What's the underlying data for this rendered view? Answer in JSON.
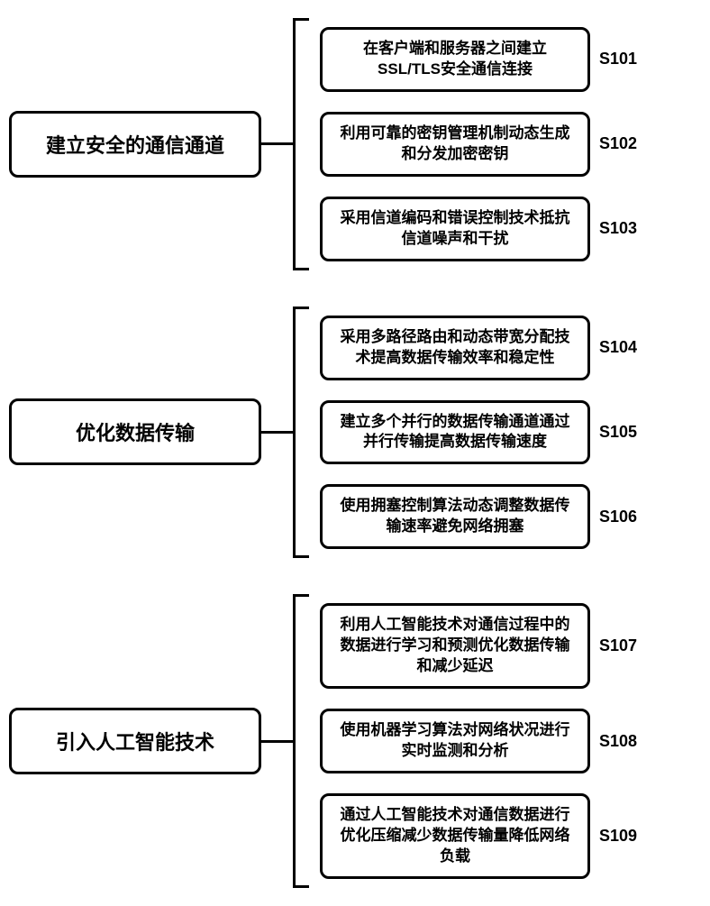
{
  "diagram": {
    "type": "flowchart",
    "background_color": "#ffffff",
    "border_color": "#000000",
    "border_width": 3,
    "border_radius": 10,
    "font_family": "Microsoft YaHei",
    "main_fontsize": 22,
    "step_fontsize": 17,
    "id_fontsize": 18,
    "font_weight": "bold",
    "text_color": "#000000",
    "sections": [
      {
        "title": "建立安全的通信通道",
        "steps": [
          {
            "id": "S101",
            "text": "在客户端和服务器之间建立SSL/TLS安全通信连接"
          },
          {
            "id": "S102",
            "text": "利用可靠的密钥管理机制动态生成和分发加密密钥"
          },
          {
            "id": "S103",
            "text": "采用信道编码和错误控制技术抵抗信道噪声和干扰"
          }
        ]
      },
      {
        "title": "优化数据传输",
        "steps": [
          {
            "id": "S104",
            "text": "采用多路径路由和动态带宽分配技术提高数据传输效率和稳定性"
          },
          {
            "id": "S105",
            "text": "建立多个并行的数据传输通道通过并行传输提高数据传输速度"
          },
          {
            "id": "S106",
            "text": "使用拥塞控制算法动态调整数据传输速率避免网络拥塞"
          }
        ]
      },
      {
        "title": "引入人工智能技术",
        "steps": [
          {
            "id": "S107",
            "text": "利用人工智能技术对通信过程中的数据进行学习和预测优化数据传输和减少延迟"
          },
          {
            "id": "S108",
            "text": "使用机器学习算法对网络状况进行实时监测和分析"
          },
          {
            "id": "S109",
            "text": "通过人工智能技术对通信数据进行优化压缩减少数据传输量降低网络负载"
          }
        ]
      }
    ]
  }
}
